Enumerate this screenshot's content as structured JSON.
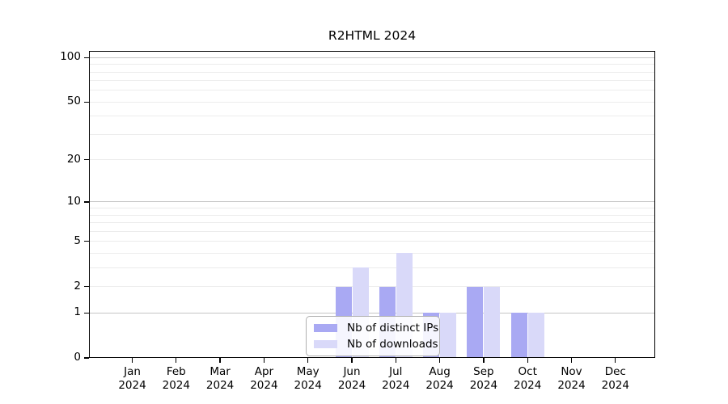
{
  "chart_data": {
    "type": "bar",
    "title": "R2HTML 2024",
    "categories": [
      "Jan",
      "Feb",
      "Mar",
      "Apr",
      "May",
      "Jun",
      "Jul",
      "Aug",
      "Sep",
      "Oct",
      "Nov",
      "Dec"
    ],
    "year": "2024",
    "series": [
      {
        "name": "Nb of distinct IPs",
        "color": "#a9a9f3",
        "values": [
          0,
          0,
          0,
          0,
          0,
          2,
          2,
          1,
          2,
          1,
          0,
          0
        ]
      },
      {
        "name": "Nb of downloads",
        "color": "#d9d9f9",
        "values": [
          0,
          0,
          0,
          0,
          0,
          3,
          4,
          1,
          2,
          1,
          0,
          0
        ]
      }
    ],
    "y_axis": {
      "scale": "log1p",
      "tick_labels": [
        "0",
        "1",
        "2",
        "5",
        "10",
        "20",
        "50",
        "100"
      ],
      "tick_values": [
        0,
        1,
        2,
        5,
        10,
        20,
        50,
        100
      ],
      "range": [
        0,
        111
      ],
      "minor_gridlines": [
        2,
        3,
        4,
        5,
        6,
        7,
        8,
        9,
        20,
        30,
        40,
        50,
        60,
        70,
        80,
        90
      ],
      "major_gridlines": [
        1,
        10,
        100
      ]
    },
    "legend_position": "bottom-center",
    "grid": "horizontal"
  }
}
